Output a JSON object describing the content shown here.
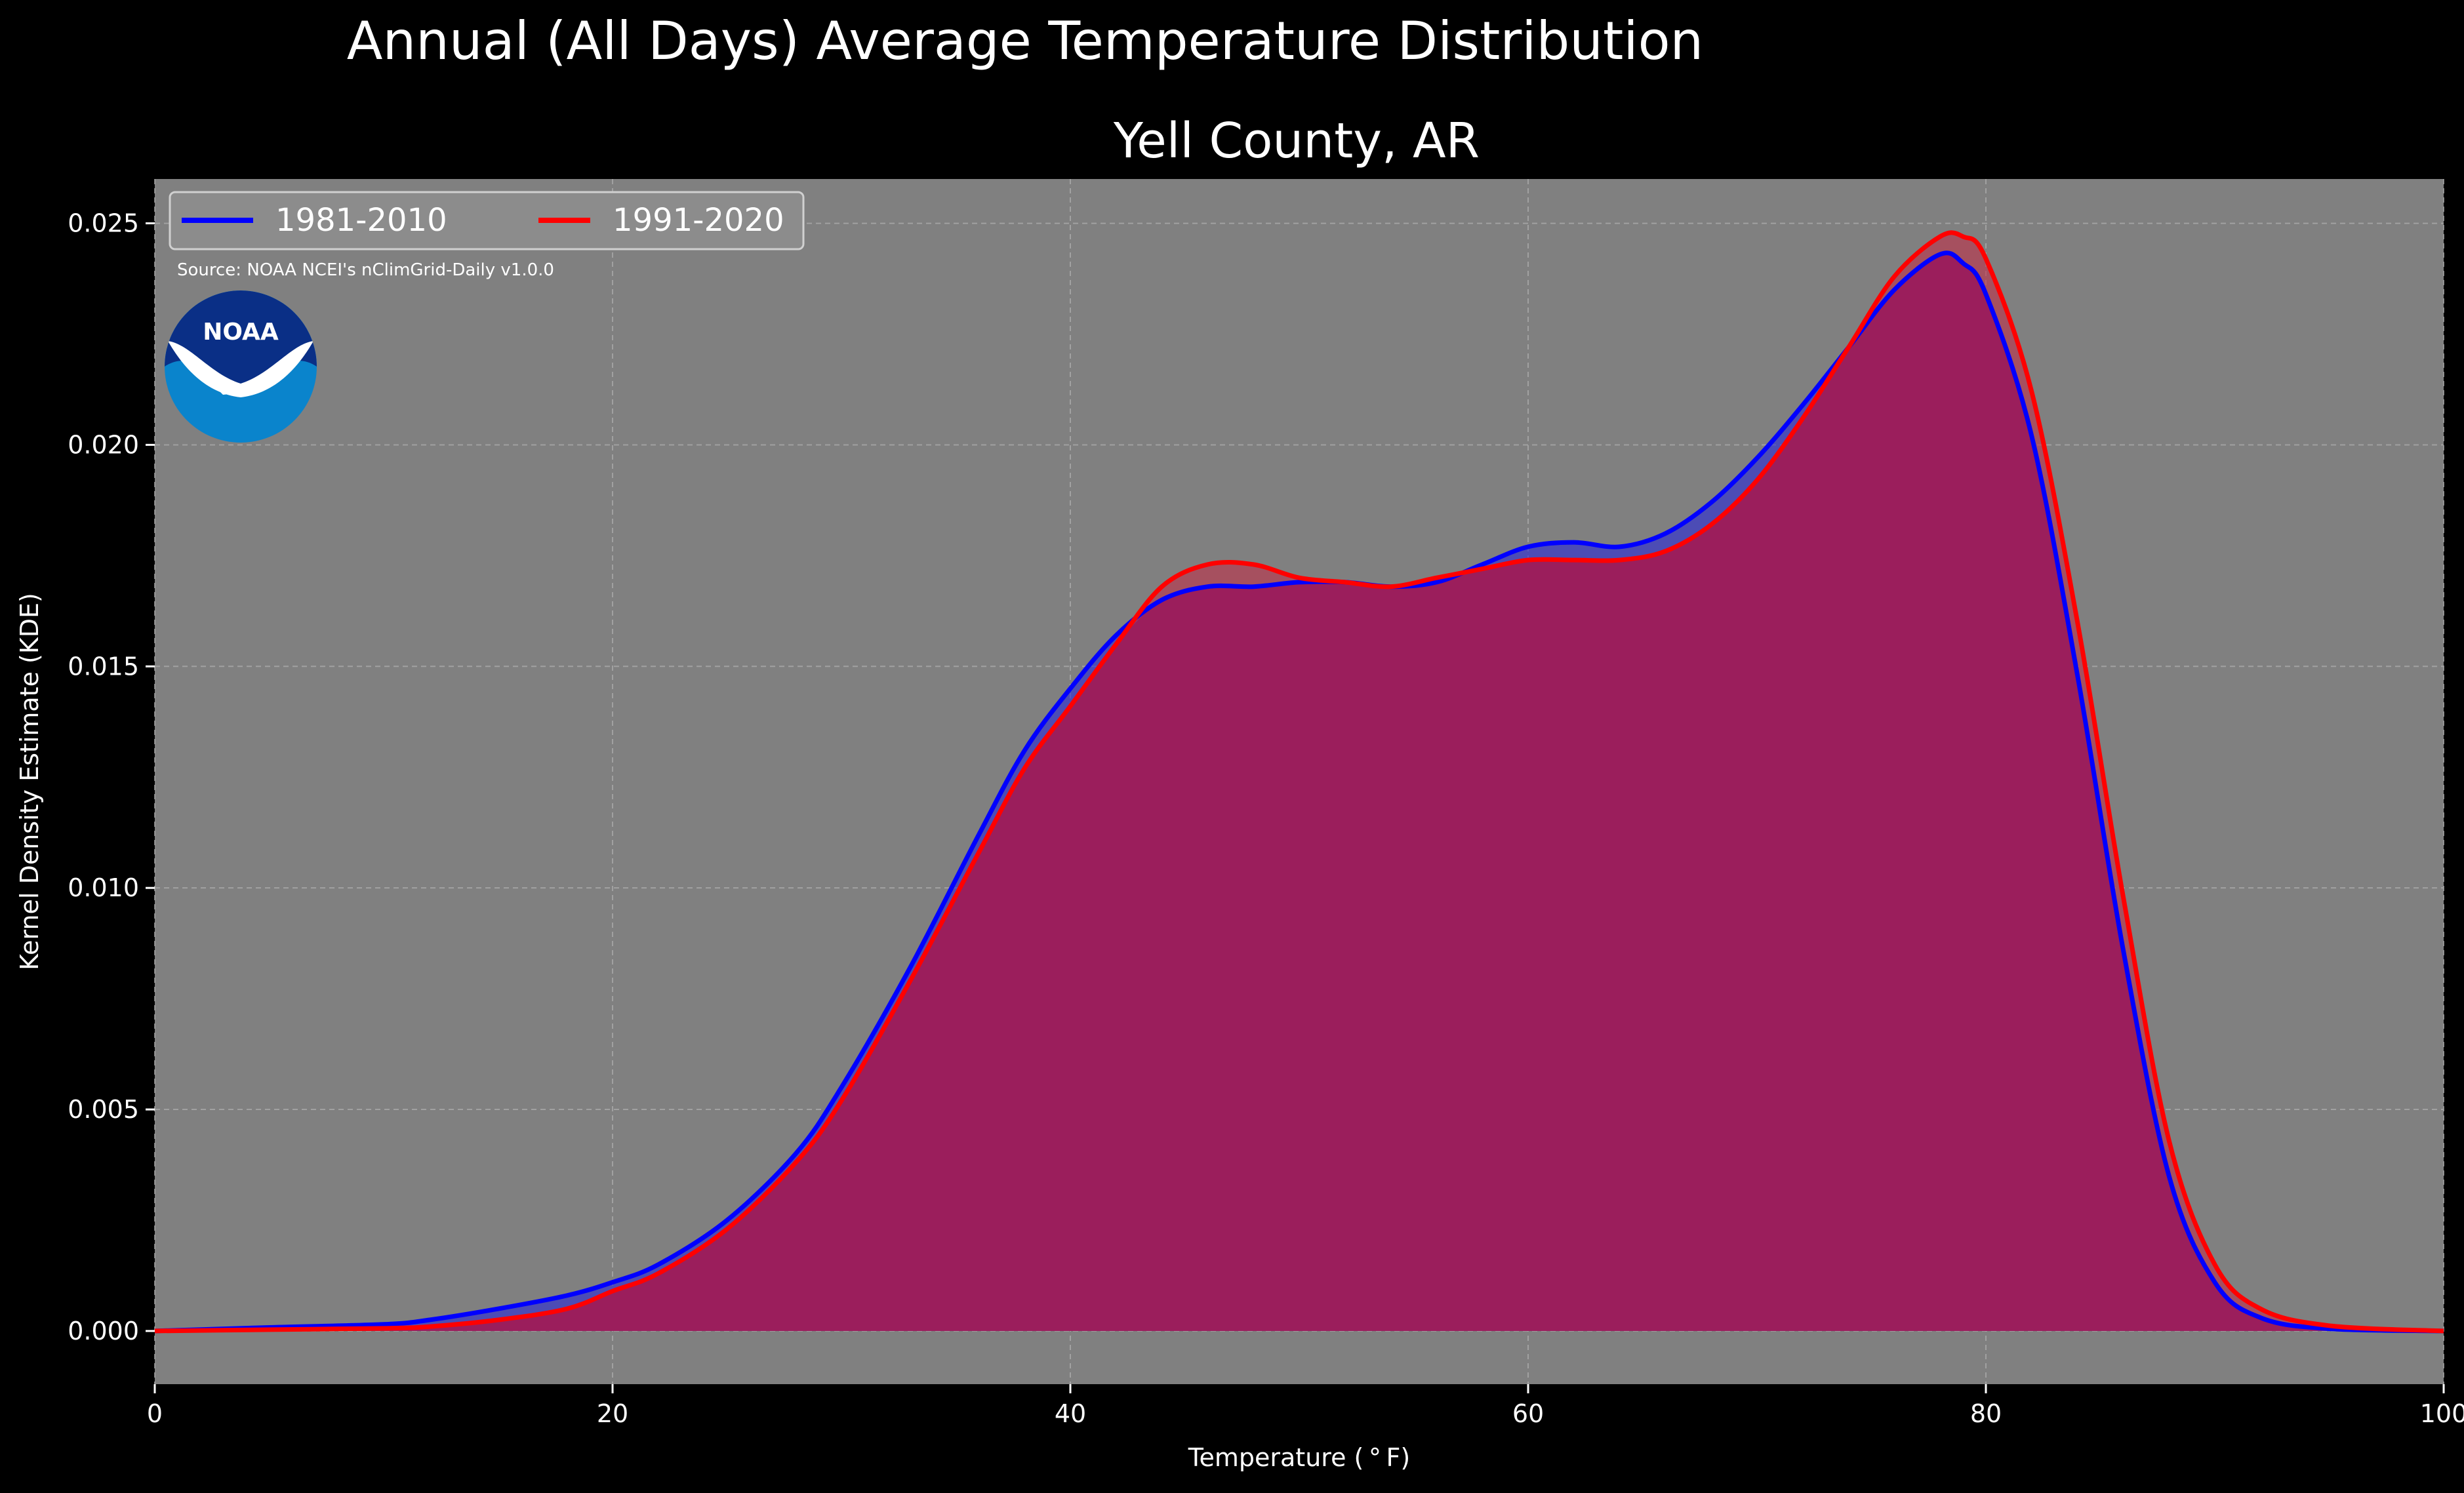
{
  "chart_data": {
    "type": "area",
    "suptitle": "Annual (All Days) Average Temperature Distribution",
    "title": "Yell County, AR",
    "xlabel": "Temperature ($^\\circ$F)",
    "xlabel_display": "Temperature ( ° F)",
    "ylabel": "Kernel Density Estimate (KDE)",
    "xlim": [
      0,
      100
    ],
    "ylim": [
      -0.0012,
      0.026
    ],
    "x_ticks": [
      0,
      20,
      40,
      60,
      80,
      100
    ],
    "y_ticks": [
      0.0,
      0.005,
      0.01,
      0.015,
      0.02,
      0.025
    ],
    "x_tick_labels": [
      "0",
      "20",
      "40",
      "60",
      "80",
      "100"
    ],
    "y_tick_labels": [
      "0.000",
      "0.005",
      "0.010",
      "0.015",
      "0.020",
      "0.025"
    ],
    "grid": true,
    "legend_position": "top-left",
    "source_note": "Source: NOAA NCEI's nClimGrid-Daily v1.0.0",
    "logo_text": "NOAA",
    "colors": {
      "background": "#000000",
      "plot_background": "#808080",
      "grid": "#b0b0b0",
      "fill_blue": "#2a2ad8",
      "fill_red": "#c0304a",
      "overlap": "#9b1e5c"
    },
    "x": [
      0,
      5,
      10,
      12,
      15,
      18,
      20,
      22,
      25,
      28,
      30,
      33,
      36,
      38,
      40,
      42,
      44,
      46,
      48,
      50,
      52,
      54,
      56,
      58,
      60,
      62,
      64,
      66,
      68,
      70,
      72,
      74,
      76,
      78,
      79,
      80,
      82,
      84,
      86,
      88,
      90,
      92,
      95,
      100
    ],
    "series": [
      {
        "name": "1981-2010",
        "color": "#0000ff",
        "values": [
          0.0,
          8e-05,
          0.00015,
          0.00025,
          0.0005,
          0.0008,
          0.0011,
          0.0015,
          0.0025,
          0.004,
          0.0055,
          0.0082,
          0.0112,
          0.0131,
          0.0145,
          0.0157,
          0.0165,
          0.0168,
          0.0168,
          0.0169,
          0.0169,
          0.0168,
          0.0169,
          0.0173,
          0.0177,
          0.0178,
          0.0177,
          0.018,
          0.0187,
          0.0197,
          0.0209,
          0.0222,
          0.0235,
          0.0243,
          0.0241,
          0.0234,
          0.0202,
          0.0148,
          0.0086,
          0.0035,
          0.0011,
          0.0003,
          5e-05,
          0.0
        ]
      },
      {
        "name": "1991-2020",
        "color": "#ff0000",
        "values": [
          0.0,
          3e-05,
          6e-05,
          0.0001,
          0.00025,
          0.0005,
          0.0009,
          0.0013,
          0.0023,
          0.0038,
          0.0052,
          0.0079,
          0.0108,
          0.0127,
          0.0141,
          0.0155,
          0.0168,
          0.0173,
          0.0173,
          0.017,
          0.0169,
          0.0168,
          0.017,
          0.0172,
          0.0174,
          0.0174,
          0.0174,
          0.0176,
          0.0182,
          0.0192,
          0.0206,
          0.0222,
          0.0238,
          0.0247,
          0.0247,
          0.0242,
          0.0212,
          0.016,
          0.0098,
          0.0043,
          0.0015,
          0.0005,
          0.00012,
          0.0
        ]
      }
    ]
  }
}
